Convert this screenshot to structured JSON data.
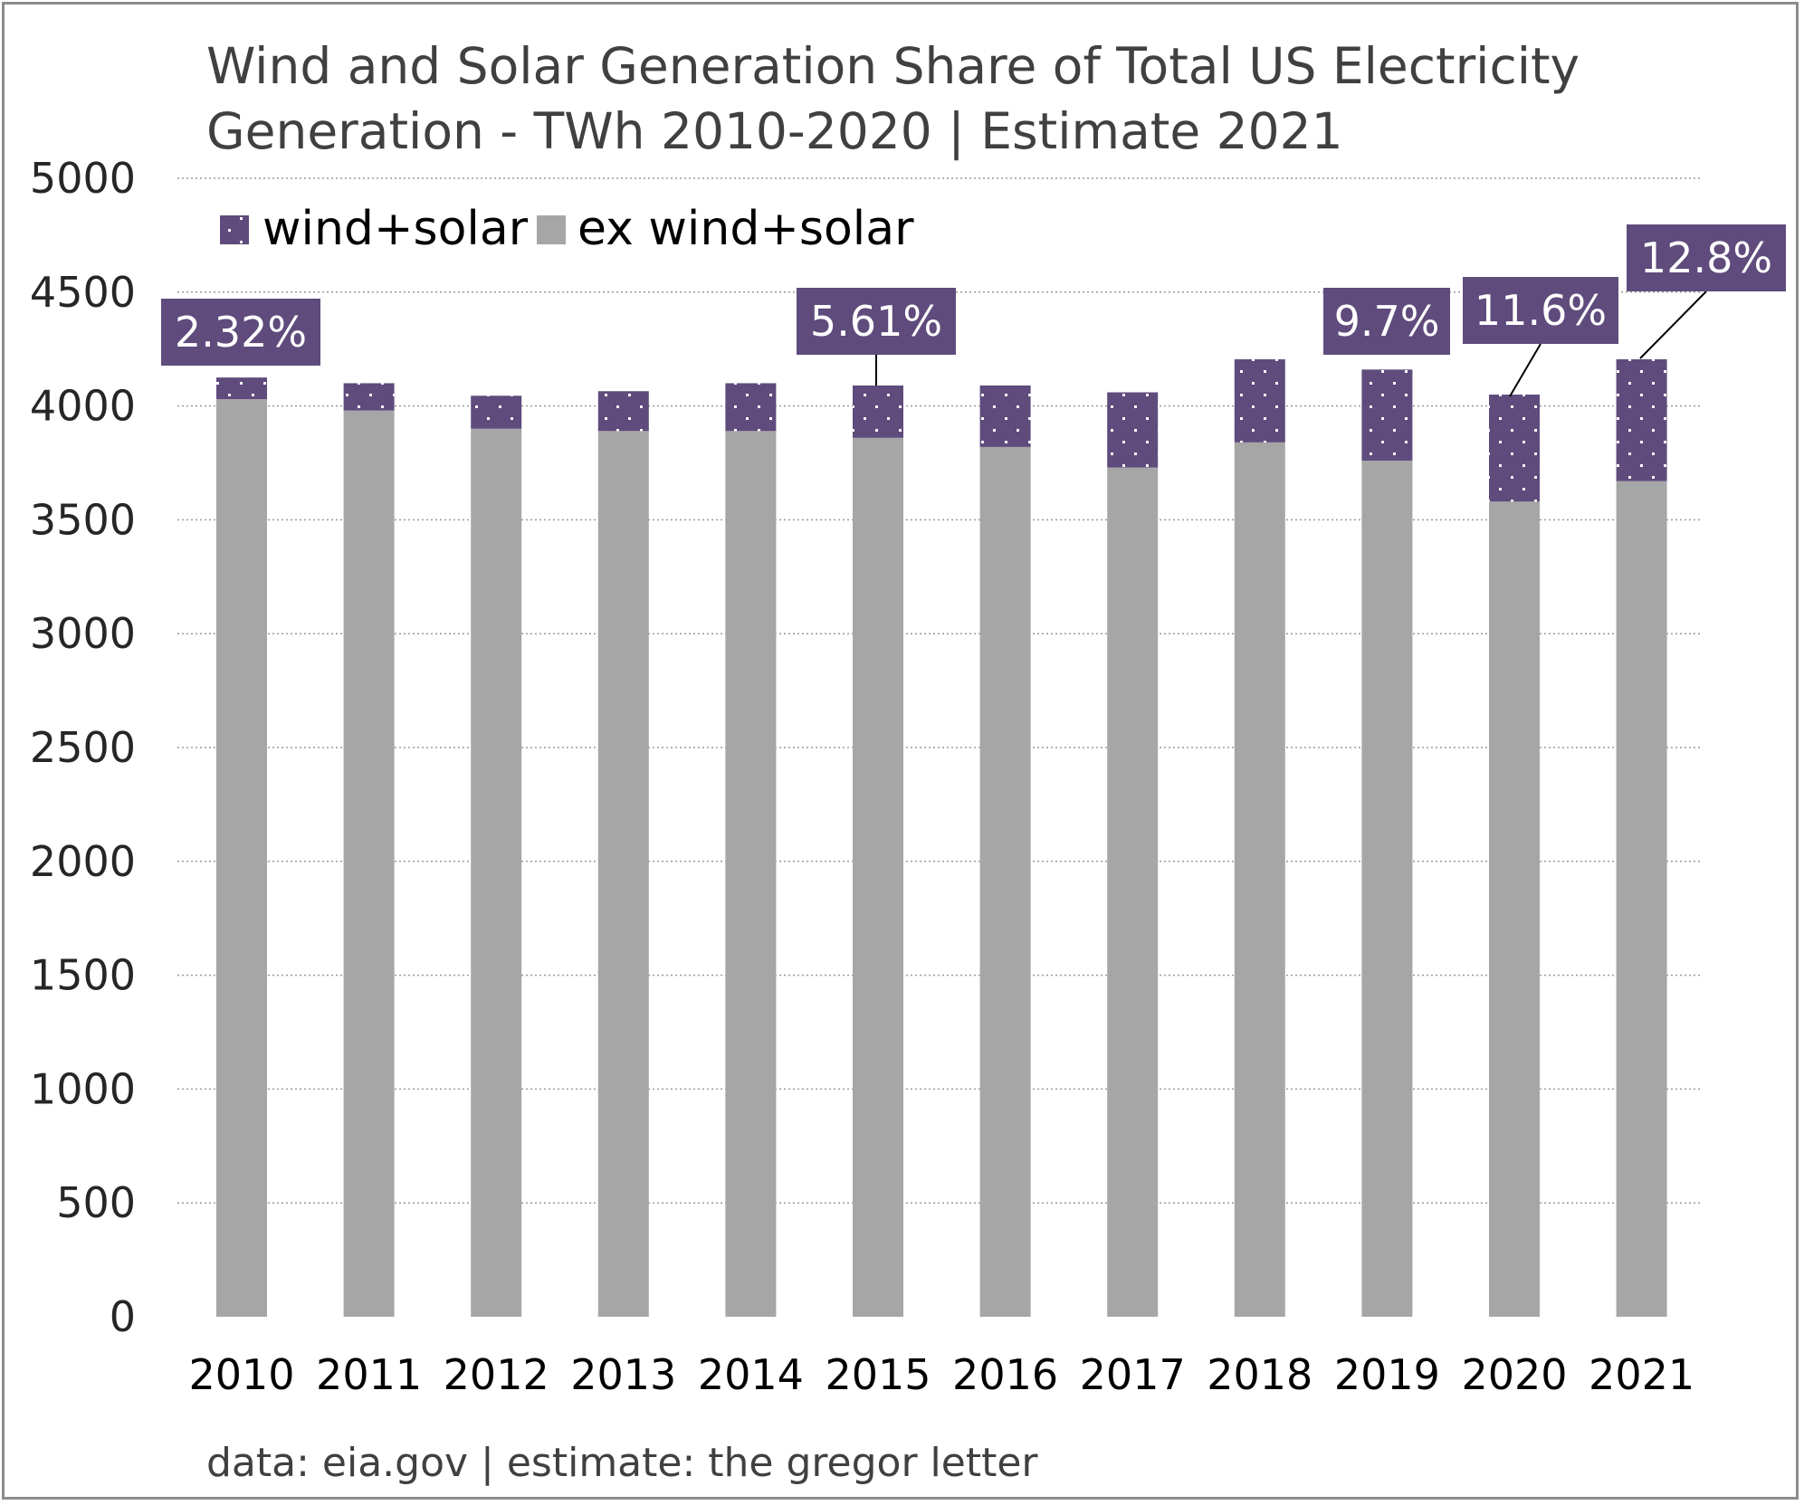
{
  "colors": {
    "wind_solar": "#5f4b7c",
    "ex_wind_solar": "#a6a6a6",
    "gridline": "#9a9a9a",
    "title": "#404040",
    "callout_text": "#ffffff"
  },
  "chart_data": {
    "type": "bar",
    "stacked": true,
    "title": "Wind and Solar Generation Share of Total US Electricity Generation - TWh 2010-2020 | Estimate 2021",
    "title_lines": [
      "Wind and Solar Generation Share of Total US Electricity",
      "Generation - TWh 2010-2020 | Estimate 2021"
    ],
    "source_note": "data: eia.gov | estimate: the gregor letter",
    "xlabel": "",
    "ylabel": "",
    "ylim": [
      0,
      5000
    ],
    "y_ticks": [
      "0",
      "500",
      "1000",
      "1500",
      "2000",
      "2500",
      "3000",
      "3500",
      "4000",
      "4500",
      "5000"
    ],
    "grid": true,
    "legend_position": "top-left",
    "categories": [
      "2010",
      "2011",
      "2012",
      "2013",
      "2014",
      "2015",
      "2016",
      "2017",
      "2018",
      "2019",
      "2020",
      "2021"
    ],
    "series": [
      {
        "name": "ex wind+solar",
        "color": "#a6a6a6",
        "values": [
          4030,
          3980,
          3900,
          3890,
          3890,
          3860,
          3820,
          3730,
          3840,
          3760,
          3580,
          3670
        ]
      },
      {
        "name": "wind+solar",
        "color": "#5f4b7c",
        "pattern": "dotted",
        "values": [
          95,
          120,
          145,
          175,
          210,
          230,
          270,
          330,
          365,
          400,
          470,
          535
        ]
      }
    ],
    "legend": [
      "wind+solar",
      "ex wind+solar"
    ],
    "annotations": [
      {
        "category": "2010",
        "label": "2.32%"
      },
      {
        "category": "2015",
        "label": "5.61%"
      },
      {
        "category": "2019",
        "label": "9.7%"
      },
      {
        "category": "2020",
        "label": "11.6%"
      },
      {
        "category": "2021",
        "label": "12.8%"
      }
    ]
  }
}
